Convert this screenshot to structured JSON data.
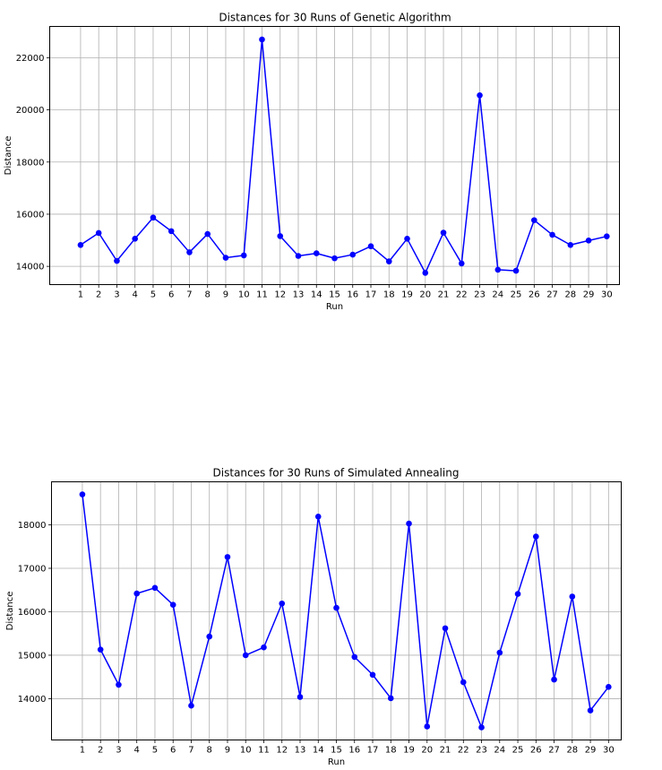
{
  "chart_data": [
    {
      "type": "line",
      "title": "Distances for 30 Runs of Genetic Algorithm",
      "xlabel": "Run",
      "ylabel": "Distance",
      "grid": true,
      "xlim": [
        -0.7,
        30.7
      ],
      "ylim": [
        13300,
        23200
      ],
      "yticks": [
        14000,
        16000,
        18000,
        20000,
        22000
      ],
      "color": "#0000ff",
      "x": [
        1,
        2,
        3,
        4,
        5,
        6,
        7,
        8,
        9,
        10,
        11,
        12,
        13,
        14,
        15,
        16,
        17,
        18,
        19,
        20,
        21,
        22,
        23,
        24,
        25,
        26,
        27,
        28,
        29,
        30
      ],
      "values": [
        14820,
        15280,
        14210,
        15060,
        15870,
        15350,
        14540,
        15240,
        14330,
        14420,
        22700,
        15160,
        14400,
        14500,
        14310,
        14450,
        14770,
        14190,
        15060,
        13750,
        15290,
        14110,
        20560,
        13870,
        13830,
        15770,
        15210,
        14820,
        14990,
        15150
      ]
    },
    {
      "type": "line",
      "title": "Distances for 30 Runs of Simulated Annealing",
      "xlabel": "Run",
      "ylabel": "Distance",
      "grid": true,
      "xlim": [
        -0.7,
        30.7
      ],
      "ylim": [
        13050,
        18990
      ],
      "yticks": [
        14000,
        15000,
        16000,
        17000,
        18000
      ],
      "color": "#0000ff",
      "x": [
        1,
        2,
        3,
        4,
        5,
        6,
        7,
        8,
        9,
        10,
        11,
        12,
        13,
        14,
        15,
        16,
        17,
        18,
        19,
        20,
        21,
        22,
        23,
        24,
        25,
        26,
        27,
        28,
        29,
        30
      ],
      "values": [
        18700,
        15130,
        14320,
        16420,
        16550,
        16160,
        13840,
        15430,
        17260,
        15000,
        15180,
        16190,
        14040,
        18190,
        16090,
        14960,
        14550,
        14010,
        18030,
        13360,
        15620,
        14380,
        13340,
        15060,
        16410,
        17730,
        14440,
        16350,
        13730,
        14270
      ]
    }
  ]
}
